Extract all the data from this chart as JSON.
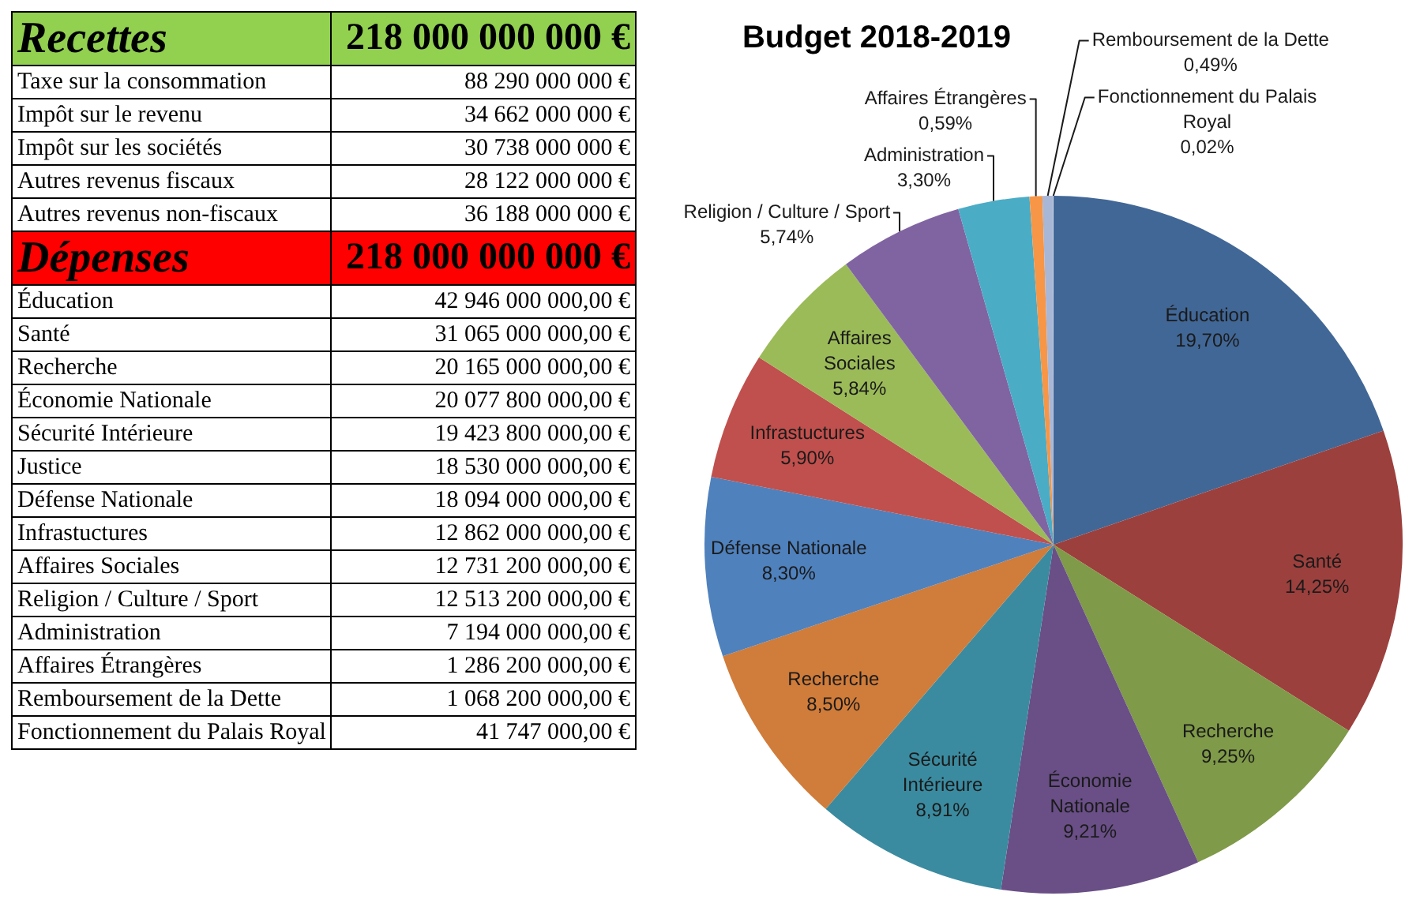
{
  "chart_data": [
    {
      "type": "other",
      "title": "Recettes",
      "subtitle": "218 000 000 000 €",
      "color": "#92d050",
      "categories": [
        "Taxe sur la consommation",
        "Impôt sur le revenu",
        "Impôt sur les sociétés",
        "Autres revenus fiscaux",
        "Autres revenus non-fiscaux"
      ],
      "values": [
        88290000000,
        34662000000,
        30738000000,
        28122000000,
        36188000000
      ],
      "value_labels": [
        "88 290 000 000 €",
        "34 662 000 000 €",
        "30 738 000 000 €",
        "28 122 000 000 €",
        "36 188 000 000 €"
      ]
    },
    {
      "type": "other",
      "title": "Dépenses",
      "subtitle": "218 000 000 000 €",
      "color": "#ff0000",
      "categories": [
        "Éducation",
        "Santé",
        "Recherche",
        "Économie Nationale",
        "Sécurité Intérieure",
        "Justice",
        "Défense Nationale",
        "Infrastuctures",
        "Affaires Sociales",
        "Religion / Culture / Sport",
        "Administration",
        "Affaires Étrangères",
        "Remboursement de la Dette",
        "Fonctionnement du Palais Royal"
      ],
      "values": [
        42946000000,
        31065000000,
        20165000000,
        20077800000,
        19423800000,
        18530000000,
        18094000000,
        12862000000,
        12731200000,
        12513200000,
        7194000000,
        1286200000,
        1068200000,
        41747000
      ],
      "value_labels": [
        "42 946 000 000,00 €",
        "31 065 000 000,00 €",
        "20 165 000 000,00 €",
        "20 077 800 000,00 €",
        "19 423 800 000,00 €",
        "18 530 000 000,00 €",
        "18 094 000 000,00 €",
        "12 862 000 000,00 €",
        "12 731 200 000,00 €",
        "12 513 200 000,00 €",
        "7 194 000 000,00 €",
        "1 286 200 000,00 €",
        "1 068 200 000,00 €",
        "41 747 000,00 €"
      ]
    },
    {
      "type": "pie",
      "title": "Budget 2018-2019",
      "categories": [
        "Éducation",
        "Santé",
        "Recherche",
        "Économie Nationale",
        "Sécurité Intérieure",
        "Recherche",
        "Défense Nationale",
        "Infrastuctures",
        "Affaires Sociales",
        "Religion / Culture / Sport",
        "Administration",
        "Affaires Étrangères",
        "Remboursement de la Dette",
        "Fonctionnement du Palais Royal"
      ],
      "values": [
        19.7,
        14.25,
        9.25,
        9.21,
        8.91,
        8.5,
        8.3,
        5.9,
        5.84,
        5.74,
        3.3,
        0.59,
        0.49,
        0.02
      ],
      "colors": [
        "#416796",
        "#9c403d",
        "#7f9a48",
        "#694f86",
        "#3b8ba0",
        "#d07c3a",
        "#4f81bd",
        "#c0504d",
        "#9bbb59",
        "#8064a2",
        "#4bacc6",
        "#f79646",
        "#a9b7d7",
        "#c6d0e4"
      ],
      "value_labels": [
        "19,70%",
        "14,25%",
        "9,25%",
        "9,21%",
        "8,91%",
        "8,50%",
        "8,30%",
        "5,90%",
        "5,84%",
        "5,74%",
        "3,30%",
        "0,59%",
        "0,49%",
        "0,02%"
      ]
    }
  ]
}
